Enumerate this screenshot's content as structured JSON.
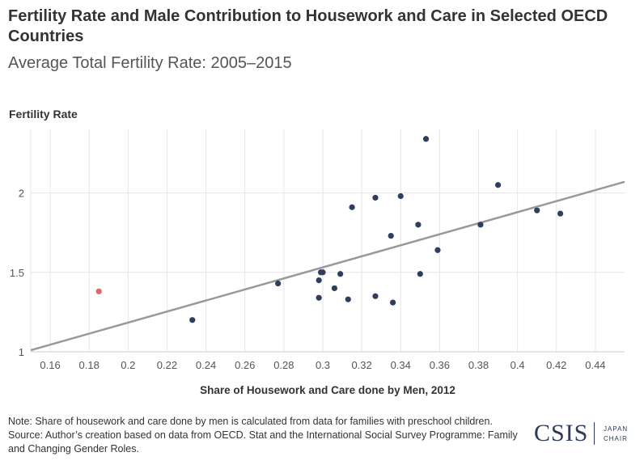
{
  "header": {
    "title": "Fertility Rate and Male Contribution to Housework and Care in Selected OECD Countries",
    "subtitle": "Average Total Fertility Rate: 2005–2015"
  },
  "footer": {
    "note": "Note: Share of housework and care done by men is calculated from data for families with preschool children. Source: Author’s creation based on data from OECD. Stat and the International Social Survey Programme: Family and Changing Gender Roles.",
    "logo_main": "CSIS",
    "logo_sub": "JAPAN CHAIR"
  },
  "colors": {
    "point": "#2d3e5e",
    "highlight": "#e06666",
    "trendline": "#999999",
    "grid": "#e6e6e6"
  },
  "chart_data": {
    "type": "scatter",
    "title": "Fertility Rate and Male Contribution to Housework and Care in Selected OECD Countries",
    "subtitle": "Average Total Fertility Rate: 2005–2015",
    "xlabel": "Share of Housework and Care done by Men, 2012",
    "ylabel": "Fertility Rate",
    "xlim": [
      0.15,
      0.455
    ],
    "ylim": [
      1.0,
      2.4
    ],
    "x_ticks": [
      0.16,
      0.18,
      0.2,
      0.22,
      0.24,
      0.26,
      0.28,
      0.3,
      0.32,
      0.34,
      0.36,
      0.38,
      0.4,
      0.42,
      0.44
    ],
    "x_tick_labels": [
      "0.16",
      "0.18",
      "0.2",
      "0.22",
      "0.24",
      "0.26",
      "0.28",
      "0.3",
      "0.32",
      "0.34",
      "0.36",
      "0.38",
      "0.4",
      "0.42",
      "0.44"
    ],
    "y_ticks": [
      1,
      1.5,
      2
    ],
    "y_tick_labels": [
      "1",
      "1.5",
      "2"
    ],
    "grid": true,
    "points": [
      {
        "x": 0.233,
        "y": 1.2
      },
      {
        "x": 0.277,
        "y": 1.43
      },
      {
        "x": 0.298,
        "y": 1.45
      },
      {
        "x": 0.299,
        "y": 1.5
      },
      {
        "x": 0.3,
        "y": 1.5
      },
      {
        "x": 0.298,
        "y": 1.34
      },
      {
        "x": 0.306,
        "y": 1.4
      },
      {
        "x": 0.309,
        "y": 1.49
      },
      {
        "x": 0.313,
        "y": 1.33
      },
      {
        "x": 0.315,
        "y": 1.91
      },
      {
        "x": 0.327,
        "y": 1.97
      },
      {
        "x": 0.327,
        "y": 1.35
      },
      {
        "x": 0.335,
        "y": 1.73
      },
      {
        "x": 0.336,
        "y": 1.31
      },
      {
        "x": 0.34,
        "y": 1.98
      },
      {
        "x": 0.349,
        "y": 1.8
      },
      {
        "x": 0.35,
        "y": 1.49
      },
      {
        "x": 0.353,
        "y": 2.34
      },
      {
        "x": 0.359,
        "y": 1.64
      },
      {
        "x": 0.381,
        "y": 1.8
      },
      {
        "x": 0.39,
        "y": 2.05
      },
      {
        "x": 0.41,
        "y": 1.89
      },
      {
        "x": 0.422,
        "y": 1.87
      }
    ],
    "highlight_points": [
      {
        "x": 0.185,
        "y": 1.38
      }
    ],
    "trendline": {
      "x": [
        0.15,
        0.455
      ],
      "y": [
        1.01,
        2.07
      ]
    }
  }
}
